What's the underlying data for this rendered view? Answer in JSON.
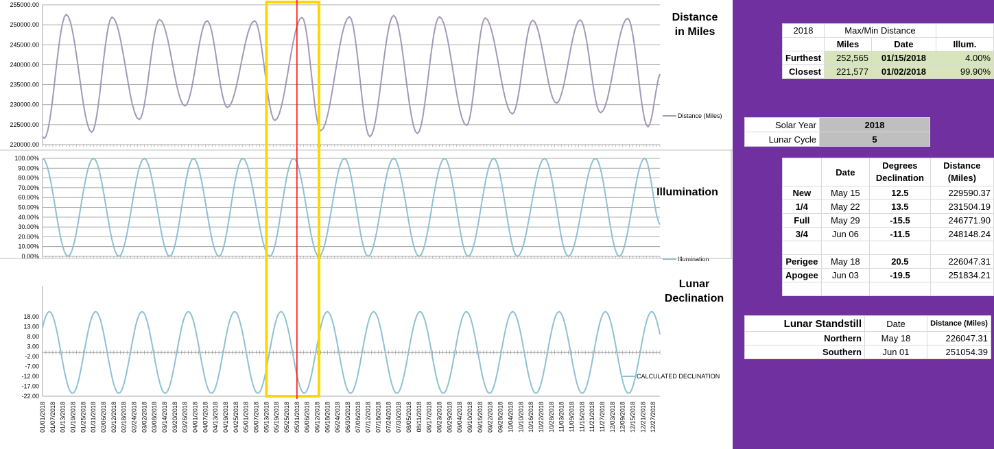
{
  "charts": {
    "distance": {
      "title_line1": "Distance",
      "title_line2": "in Miles",
      "legend": "Distance (Miles)",
      "ticks": [
        "255000.00",
        "250000.00",
        "245000.00",
        "240000.00",
        "235000.00",
        "230000.00",
        "225000.00",
        "220000.00"
      ]
    },
    "illumination": {
      "title": "Illumination",
      "legend": "Illumination",
      "ticks": [
        "100.00%",
        "90.00%",
        "80.00%",
        "70.00%",
        "60.00%",
        "50.00%",
        "40.00%",
        "30.00%",
        "20.00%",
        "10.00%",
        "0.00%"
      ]
    },
    "declination": {
      "title_line1": "Lunar",
      "title_line2": "Declination",
      "legend": "CALCULATED DECLINATION",
      "ticks": [
        "18.00",
        "13.00",
        "8.00",
        "3.00",
        "-2.00",
        "-7.00",
        "-12.00",
        "-17.00",
        "-22.00"
      ]
    },
    "x_dates": [
      "01/01/2018",
      "01/07/2018",
      "01/13/2018",
      "01/19/2018",
      "01/25/2018",
      "01/31/2018",
      "02/06/2018",
      "02/12/2018",
      "02/18/2018",
      "02/24/2018",
      "03/02/2018",
      "03/08/2018",
      "03/14/2018",
      "03/20/2018",
      "03/26/2018",
      "04/01/2018",
      "04/07/2018",
      "04/13/2018",
      "04/19/2018",
      "04/25/2018",
      "05/01/2018",
      "05/07/2018",
      "05/13/2018",
      "05/19/2018",
      "05/25/2018",
      "05/31/2018",
      "06/06/2018",
      "06/12/2018",
      "06/18/2018",
      "06/24/2018",
      "06/30/2018",
      "07/06/2018",
      "07/12/2018",
      "07/18/2018",
      "07/24/2018",
      "07/30/2018",
      "08/05/2018",
      "08/11/2018",
      "08/17/2018",
      "08/23/2018",
      "08/29/2018",
      "09/04/2018",
      "09/10/2018",
      "09/16/2018",
      "09/22/2018",
      "09/28/2018",
      "10/04/2018",
      "10/10/2018",
      "10/16/2018",
      "10/22/2018",
      "10/28/2018",
      "11/03/2018",
      "11/09/2018",
      "11/15/2018",
      "11/21/2018",
      "11/27/2018",
      "12/03/2018",
      "12/09/2018",
      "12/15/2018",
      "12/21/2018",
      "12/27/2018"
    ],
    "highlight": {
      "start": "05/13/2018",
      "end": "06/13/2018",
      "marker": "05/31/2018",
      "box_color": "#ffd700",
      "line_color": "#ff0000"
    },
    "colors": {
      "distance": "#a398b8",
      "illumination": "#8ec0d4",
      "declination": "#8ec0d4"
    }
  },
  "chart_data": [
    {
      "type": "line",
      "series": [
        {
          "name": "Distance (Miles)",
          "color": "#a398b8"
        }
      ],
      "ylim": [
        220000,
        255000
      ],
      "x_range": [
        "01/01/2018",
        "12/31/2018"
      ],
      "perigees": [
        [
          "01/02/2018",
          221577
        ],
        [
          "01/30/2018",
          223100
        ],
        [
          "02/27/2018",
          226300
        ],
        [
          "03/26/2018",
          229700
        ],
        [
          "04/20/2018",
          229300
        ],
        [
          "05/18/2018",
          226047
        ],
        [
          "06/14/2018",
          223500
        ],
        [
          "07/13/2018",
          222000
        ],
        [
          "08/10/2018",
          222800
        ],
        [
          "09/08/2018",
          224800
        ],
        [
          "10/05/2018",
          227700
        ],
        [
          "10/31/2018",
          230400
        ],
        [
          "11/26/2018",
          228000
        ],
        [
          "12/24/2018",
          224500
        ]
      ],
      "apogees": [
        [
          "01/15/2018",
          252565
        ],
        [
          "02/11/2018",
          251900
        ],
        [
          "03/11/2018",
          251300
        ],
        [
          "04/08/2018",
          251000
        ],
        [
          "05/06/2018",
          251000
        ],
        [
          "06/03/2018",
          251834
        ],
        [
          "07/01/2018",
          252000
        ],
        [
          "07/27/2018",
          252300
        ],
        [
          "08/23/2018",
          252000
        ],
        [
          "09/19/2018",
          251700
        ],
        [
          "10/17/2018",
          251100
        ],
        [
          "11/14/2018",
          251200
        ],
        [
          "12/12/2018",
          251600
        ]
      ],
      "last_value": [
        "12/31/2018",
        238000
      ]
    },
    {
      "type": "line",
      "series": [
        {
          "name": "Illumination",
          "color": "#8ec0d4"
        }
      ],
      "ylim": [
        0,
        100
      ],
      "unit": "%",
      "full_moons": [
        "01/01/2018",
        "01/31/2018",
        "03/02/2018",
        "03/31/2018",
        "04/29/2018",
        "05/29/2018",
        "06/28/2018",
        "07/27/2018",
        "08/26/2018",
        "09/24/2018",
        "10/24/2018",
        "11/23/2018",
        "12/22/2018"
      ],
      "new_moons": [
        "01/16/2018",
        "02/15/2018",
        "03/17/2018",
        "04/15/2018",
        "05/15/2018",
        "06/13/2018",
        "07/12/2018",
        "08/11/2018",
        "09/09/2018",
        "10/08/2018",
        "11/07/2018",
        "12/07/2018"
      ]
    },
    {
      "type": "line",
      "series": [
        {
          "name": "CALCULATED DECLINATION",
          "color": "#8ec0d4"
        }
      ],
      "ylim": [
        -22,
        23
      ],
      "amplitude": 20.5,
      "reference_max": "01/05/2018",
      "period_days": 27.32
    }
  ],
  "panel": {
    "maxmin": {
      "year": "2018",
      "title": "Max/Min Distance",
      "headers": [
        "Miles",
        "Date",
        "Illum."
      ],
      "rows": [
        {
          "label": "Furthest",
          "miles": "252,565",
          "date": "01/15/2018",
          "illum": "4.00%"
        },
        {
          "label": "Closest",
          "miles": "221,577",
          "date": "01/02/2018",
          "illum": "99.90%"
        }
      ]
    },
    "solar": {
      "year_label": "Solar Year",
      "year": "2018",
      "cycle_label": "Lunar Cycle",
      "cycle": "5"
    },
    "phases": {
      "headers": [
        "Date",
        "Degrees Declination",
        "Distance (Miles)"
      ],
      "header_lines": [
        [
          "Date"
        ],
        [
          "Degrees",
          "Declination"
        ],
        [
          "Distance",
          "(Miles)"
        ]
      ],
      "rows": [
        {
          "label": "New",
          "date": "May 15",
          "decl": "12.5",
          "dist": "229590.37"
        },
        {
          "label": "1/4",
          "date": "May 22",
          "decl": "13.5",
          "dist": "231504.19"
        },
        {
          "label": "Full",
          "date": "May 29",
          "decl": "-15.5",
          "dist": "246771.90"
        },
        {
          "label": "3/4",
          "date": "Jun 06",
          "decl": "-11.5",
          "dist": "248148.24"
        }
      ],
      "extremes": [
        {
          "label": "Perigee",
          "date": "May 18",
          "decl": "20.5",
          "dist": "226047.31"
        },
        {
          "label": "Apogee",
          "date": "Jun 03",
          "decl": "-19.5",
          "dist": "251834.21"
        }
      ]
    },
    "standstill": {
      "title": "Lunar Standstill",
      "headers": [
        "Date",
        "Distance (Miles)"
      ],
      "rows": [
        {
          "label": "Northern",
          "date": "May 18",
          "dist": "226047.31"
        },
        {
          "label": "Southern",
          "date": "Jun 01",
          "dist": "251054.39"
        }
      ]
    }
  }
}
